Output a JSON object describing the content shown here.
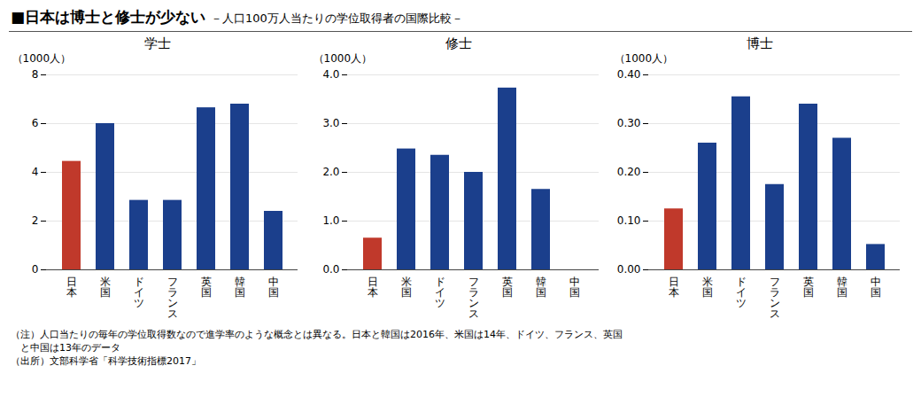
{
  "title": "■日本は博士と修士が少ない",
  "subtitle": "－人口100万人当たりの学位取得者の国際比較－",
  "annotations": [
    "（注）人口当たりの毎年の学位取得数なので進学率のような概念とは異なる。日本と韓国は2016年、米国は14年、ドイツ、フランス、英国",
    "　と中国は13年のデータ",
    "（出所）文部科学省「科学技術指標2017」"
  ],
  "chart_data": [
    {
      "type": "bar",
      "title": "学士",
      "ylabel": "（1000人）",
      "categories": [
        "日本",
        "米国",
        "ドイツ",
        "フランス",
        "英国",
        "韓国",
        "中国"
      ],
      "values": [
        4.45,
        6.0,
        2.85,
        2.85,
        6.65,
        6.8,
        2.4
      ],
      "colors": [
        "#C0392B",
        "#1B3F8C",
        "#1B3F8C",
        "#1B3F8C",
        "#1B3F8C",
        "#1B3F8C",
        "#1B3F8C"
      ],
      "ylim": [
        0,
        8
      ],
      "yticks": [
        0,
        2,
        4,
        6,
        8
      ],
      "grid": true
    },
    {
      "type": "bar",
      "title": "修士",
      "ylabel": "（1000人）",
      "categories": [
        "日本",
        "米国",
        "ドイツ",
        "フランス",
        "英国",
        "韓国",
        "中国"
      ],
      "values": [
        0.65,
        2.48,
        2.35,
        2.0,
        3.73,
        1.65,
        0.0
      ],
      "colors": [
        "#C0392B",
        "#1B3F8C",
        "#1B3F8C",
        "#1B3F8C",
        "#1B3F8C",
        "#1B3F8C",
        "#1B3F8C"
      ],
      "ylim": [
        0,
        4
      ],
      "yticks": [
        0,
        1,
        2,
        3,
        4
      ],
      "grid": true
    },
    {
      "type": "bar",
      "title": "博士",
      "ylabel": "（1000人）",
      "categories": [
        "日本",
        "米国",
        "ドイツ",
        "フランス",
        "英国",
        "韓国",
        "中国"
      ],
      "values": [
        0.125,
        0.26,
        0.355,
        0.175,
        0.34,
        0.27,
        0.052
      ],
      "colors": [
        "#C0392B",
        "#1B3F8C",
        "#1B3F8C",
        "#1B3F8C",
        "#1B3F8C",
        "#1B3F8C",
        "#1B3F8C"
      ],
      "ylim": [
        0,
        0.4
      ],
      "yticks": [
        0,
        0.1,
        0.2,
        0.3,
        0.4
      ],
      "grid": true
    }
  ]
}
